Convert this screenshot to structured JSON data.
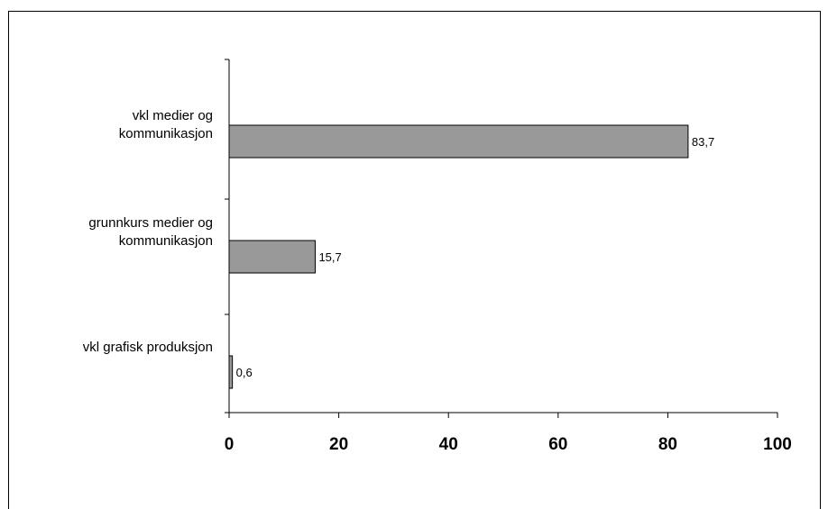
{
  "chart_data": {
    "type": "bar",
    "orientation": "horizontal",
    "categories": [
      "vkl medier og kommunikasjon",
      "grunnkurs medier og kommunikasjon",
      "vkl grafisk produksjon"
    ],
    "category_lines": [
      [
        "vkl medier og",
        "kommunikasjon"
      ],
      [
        "grunnkurs medier og",
        "kommunikasjon"
      ],
      [
        "vkl grafisk produksjon"
      ]
    ],
    "values": [
      83.7,
      15.7,
      0.6
    ],
    "value_labels": [
      "83,7",
      "15,7",
      "0,6"
    ],
    "xlim": [
      0,
      100
    ],
    "x_ticks": [
      0,
      20,
      40,
      60,
      80,
      100
    ],
    "x_tick_labels": [
      "0",
      "20",
      "40",
      "60",
      "80",
      "100"
    ],
    "bar_color": "#999999",
    "grid": false,
    "legend": "none"
  }
}
